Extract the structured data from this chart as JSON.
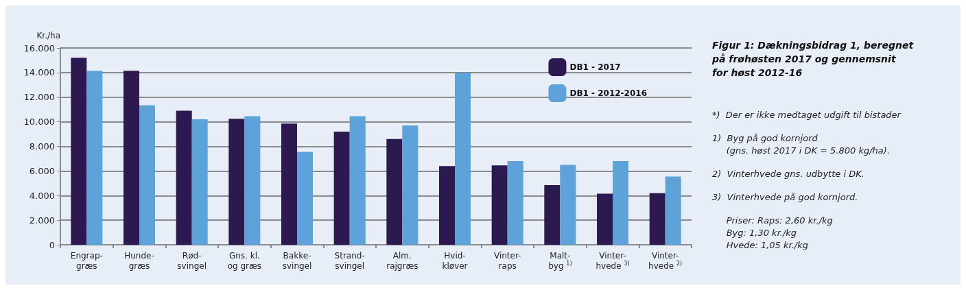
{
  "chart_data": {
    "type": "bar",
    "title": "Figur 1: Dækningsbidrag 1, beregnet\npå frøhøsten 2017 og gennemsnit\nfor høst 2012-16",
    "ylabel": "Kr./ha",
    "categories": [
      "Engrap-\ngræs",
      "Hunde-\ngræs",
      "Rød-\nsvingel",
      "Gns. kl.\nog græs",
      "Bakke-\nsvingel",
      "Strand-\nsvingel",
      "Alm.\nrajgræs",
      "Hvid-\nkløver",
      "Vinter-\nraps",
      "Malt-\nbyg $^{1)}$",
      "Vinter-\nhvede $^{3)}$",
      "Vinter-\nhvede $^{2)}$"
    ],
    "series": [
      {
        "name": "DB1 - 2017",
        "color": "#2b1950",
        "values": [
          15200,
          14150,
          10900,
          10250,
          9850,
          9200,
          8600,
          6400,
          6450,
          4850,
          4150,
          4200
        ]
      },
      {
        "name": "DB1 - 2012-2016",
        "color": "#5da3d9",
        "values": [
          14150,
          11350,
          10200,
          10450,
          7550,
          10450,
          9700,
          14000,
          6800,
          6500,
          6800,
          5550
        ]
      }
    ],
    "ylim": [
      0,
      16000
    ],
    "yticks": [
      {
        "value": 0,
        "label": "0"
      },
      {
        "value": 2000,
        "label": "2.000"
      },
      {
        "value": 4000,
        "label": "4.000"
      },
      {
        "value": 6000,
        "label": "6.000"
      },
      {
        "value": 8000,
        "label": "8.000"
      },
      {
        "value": 10000,
        "label": "10.000"
      },
      {
        "value": 12000,
        "label": "12.000"
      },
      {
        "value": 14000,
        "label": "14.000"
      },
      {
        "value": 16000,
        "label": "16.000"
      }
    ],
    "grid": "y",
    "legend": "top right",
    "annotations": [
      "*)  Der er ikke medtaget udgift til bistader",
      "1)  Byg på god kornjord\n     (gns. høst 2017 i DK = 5.800 kg/ha).",
      "2)  Vinterhvede gns. udbytte i DK.",
      "3)  Vinterhvede på god kornjord.",
      "     Priser: Raps: 2,60 kr./kg\n     Byg: 1,30 kr./kg\n     Hvede: 1,05 kr./kg"
    ]
  }
}
